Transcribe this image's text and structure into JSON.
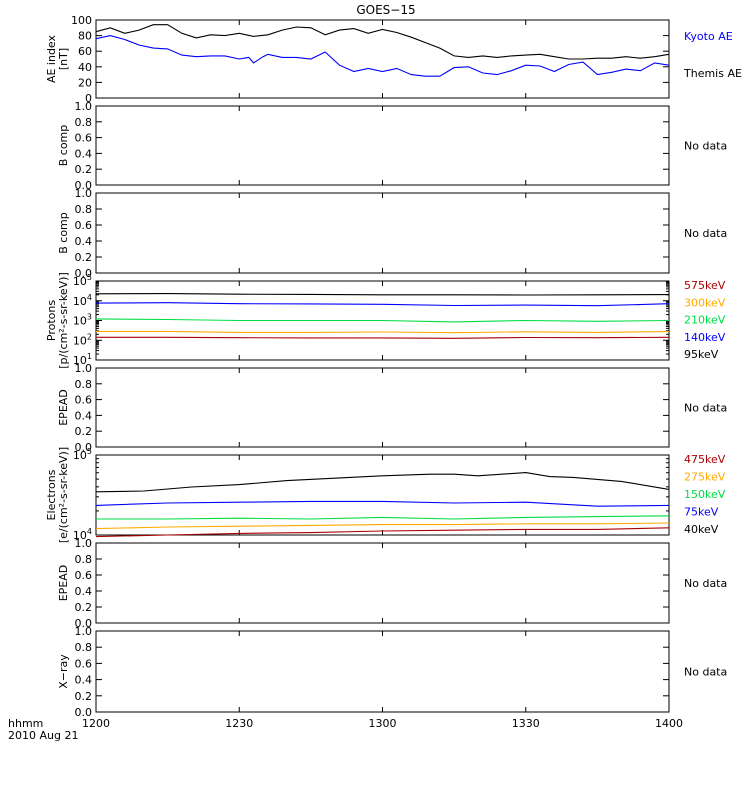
{
  "title": "GOES−15",
  "x_axis": {
    "label_line1": "hhmm",
    "label_line2": "2010 Aug 21",
    "range": [
      0,
      120
    ],
    "ticks": [
      {
        "value": 0,
        "label": "1200"
      },
      {
        "value": 30,
        "label": "1230"
      },
      {
        "value": 60,
        "label": "1300"
      },
      {
        "value": 90,
        "label": "1330"
      },
      {
        "value": 120,
        "label": "1400"
      }
    ]
  },
  "colors": {
    "black": "#000000",
    "blue": "#0000ff",
    "green": "#00dd44",
    "orange": "#ffaa00",
    "darkred": "#aa0000"
  },
  "chart_data": [
    {
      "id": "ae",
      "type": "line",
      "ylabel": [
        "AE index",
        "[nT]"
      ],
      "ylim": [
        0,
        100
      ],
      "scale": "linear",
      "yticks": [
        0,
        20,
        40,
        60,
        80,
        100
      ],
      "legend": [
        {
          "text": "Kyoto AE",
          "color": "#0000ff"
        },
        {
          "text": "Themis AE",
          "color": "#000000"
        }
      ],
      "series": [
        {
          "name": "Themis AE",
          "color": "#000000",
          "x": [
            0,
            3,
            6,
            9,
            12,
            15,
            18,
            21,
            24,
            27,
            30,
            33,
            36,
            39,
            42,
            45,
            48,
            51,
            54,
            57,
            60,
            63,
            66,
            69,
            72,
            75,
            78,
            81,
            84,
            87,
            90,
            93,
            96,
            99,
            102,
            105,
            108,
            111,
            114,
            117,
            120
          ],
          "y": [
            85,
            90,
            83,
            87,
            94,
            94,
            83,
            77,
            81,
            80,
            83,
            79,
            81,
            87,
            91,
            90,
            81,
            87,
            89,
            83,
            88,
            84,
            78,
            71,
            64,
            54,
            52,
            54,
            52,
            54,
            55,
            56,
            53,
            50,
            50,
            51,
            51,
            53,
            51,
            53,
            56
          ]
        },
        {
          "name": "Kyoto AE",
          "color": "#0000ff",
          "x": [
            0,
            3,
            6,
            9,
            12,
            15,
            18,
            21,
            24,
            27,
            30,
            32,
            33,
            35,
            36,
            39,
            42,
            45,
            48,
            51,
            54,
            57,
            60,
            63,
            66,
            69,
            72,
            75,
            78,
            81,
            84,
            87,
            90,
            93,
            96,
            99,
            102,
            105,
            108,
            111,
            114,
            117,
            120
          ],
          "y": [
            76,
            80,
            75,
            68,
            64,
            63,
            55,
            53,
            54,
            54,
            50,
            52,
            45,
            53,
            56,
            52,
            52,
            50,
            59,
            42,
            34,
            38,
            34,
            38,
            30,
            28,
            28,
            39,
            40,
            32,
            30,
            35,
            42,
            41,
            34,
            43,
            46,
            30,
            33,
            37,
            35,
            45,
            42
          ]
        }
      ]
    },
    {
      "id": "bcomp1",
      "type": "line",
      "ylabel": [
        "B comp"
      ],
      "ylim": [
        0,
        1
      ],
      "scale": "linear",
      "yticks": [
        0,
        0.2,
        0.4,
        0.6,
        0.8,
        1.0
      ],
      "legend": [
        {
          "text": "No data",
          "color": "#000000"
        }
      ],
      "series": []
    },
    {
      "id": "bcomp2",
      "type": "line",
      "ylabel": [
        "B comp"
      ],
      "ylim": [
        0,
        1
      ],
      "scale": "linear",
      "yticks": [
        0,
        0.2,
        0.4,
        0.6,
        0.8,
        1.0
      ],
      "legend": [
        {
          "text": "No data",
          "color": "#000000"
        }
      ],
      "series": []
    },
    {
      "id": "protons",
      "type": "line",
      "ylabel": [
        "Protons",
        "[p/(cm²-s-sr-keV)]"
      ],
      "ylim": [
        1,
        5
      ],
      "scale": "log10",
      "yticks": [
        1,
        2,
        3,
        4,
        5
      ],
      "legend": [
        {
          "text": "575keV",
          "color": "#aa0000"
        },
        {
          "text": "300keV",
          "color": "#ffaa00"
        },
        {
          "text": "210keV",
          "color": "#00dd44"
        },
        {
          "text": "140keV",
          "color": "#0000ff"
        },
        {
          "text": "95keV",
          "color": "#000000"
        }
      ],
      "series": [
        {
          "name": "95keV",
          "color": "#000000",
          "x": [
            0,
            15,
            30,
            45,
            60,
            75,
            90,
            105,
            120
          ],
          "y": [
            4.35,
            4.36,
            4.33,
            4.32,
            4.3,
            4.3,
            4.29,
            4.3,
            4.31
          ]
        },
        {
          "name": "140keV",
          "color": "#0000ff",
          "x": [
            0,
            15,
            30,
            45,
            60,
            75,
            90,
            105,
            120
          ],
          "y": [
            3.88,
            3.9,
            3.85,
            3.84,
            3.82,
            3.76,
            3.78,
            3.75,
            3.85
          ]
        },
        {
          "name": "210keV",
          "color": "#00dd44",
          "x": [
            0,
            15,
            30,
            45,
            60,
            75,
            90,
            105,
            120
          ],
          "y": [
            3.08,
            3.05,
            3.0,
            3.0,
            3.0,
            2.93,
            3.0,
            2.96,
            3.0
          ]
        },
        {
          "name": "300keV",
          "color": "#ffaa00",
          "x": [
            0,
            15,
            30,
            45,
            60,
            75,
            90,
            105,
            120
          ],
          "y": [
            2.45,
            2.45,
            2.4,
            2.4,
            2.42,
            2.38,
            2.43,
            2.4,
            2.44
          ]
        },
        {
          "name": "575keV",
          "color": "#aa0000",
          "x": [
            0,
            15,
            30,
            45,
            60,
            75,
            90,
            105,
            120
          ],
          "y": [
            2.15,
            2.15,
            2.13,
            2.12,
            2.12,
            2.1,
            2.14,
            2.13,
            2.15
          ]
        }
      ]
    },
    {
      "id": "epead1",
      "type": "line",
      "ylabel": [
        "EPEAD"
      ],
      "ylim": [
        0,
        1
      ],
      "scale": "linear",
      "yticks": [
        0,
        0.2,
        0.4,
        0.6,
        0.8,
        1.0
      ],
      "legend": [
        {
          "text": "No data",
          "color": "#000000"
        }
      ],
      "series": []
    },
    {
      "id": "electrons",
      "type": "line",
      "ylabel": [
        "Electrons",
        "[e/(cm²-s-sr-keV)]"
      ],
      "ylim": [
        4,
        5
      ],
      "scale": "log10",
      "yticks": [
        4,
        5
      ],
      "legend": [
        {
          "text": "475keV",
          "color": "#aa0000"
        },
        {
          "text": "275keV",
          "color": "#ffaa00"
        },
        {
          "text": "150keV",
          "color": "#00dd44"
        },
        {
          "text": "75keV",
          "color": "#0000ff"
        },
        {
          "text": "40keV",
          "color": "#000000"
        }
      ],
      "series": [
        {
          "name": "40keV",
          "color": "#000000",
          "x": [
            0,
            10,
            20,
            30,
            40,
            50,
            60,
            70,
            75,
            80,
            90,
            95,
            100,
            110,
            120
          ],
          "y": [
            4.54,
            4.55,
            4.6,
            4.63,
            4.68,
            4.71,
            4.74,
            4.76,
            4.76,
            4.74,
            4.78,
            4.73,
            4.72,
            4.67,
            4.57
          ]
        },
        {
          "name": "75keV",
          "color": "#0000ff",
          "x": [
            0,
            15,
            30,
            45,
            60,
            75,
            90,
            105,
            120
          ],
          "y": [
            4.37,
            4.4,
            4.41,
            4.42,
            4.42,
            4.4,
            4.41,
            4.36,
            4.37
          ]
        },
        {
          "name": "150keV",
          "color": "#00dd44",
          "x": [
            0,
            15,
            30,
            45,
            60,
            75,
            90,
            105,
            120
          ],
          "y": [
            4.2,
            4.2,
            4.21,
            4.2,
            4.22,
            4.2,
            4.22,
            4.23,
            4.24
          ]
        },
        {
          "name": "275keV",
          "color": "#ffaa00",
          "x": [
            0,
            15,
            30,
            45,
            60,
            75,
            90,
            105,
            120
          ],
          "y": [
            4.08,
            4.1,
            4.11,
            4.12,
            4.13,
            4.13,
            4.14,
            4.14,
            4.15
          ]
        },
        {
          "name": "475keV",
          "color": "#aa0000",
          "x": [
            0,
            15,
            30,
            45,
            60,
            75,
            90,
            105,
            120
          ],
          "y": [
            3.98,
            4.0,
            4.02,
            4.03,
            4.05,
            4.06,
            4.07,
            4.07,
            4.09
          ]
        }
      ]
    },
    {
      "id": "epead2",
      "type": "line",
      "ylabel": [
        "EPEAD"
      ],
      "ylim": [
        0,
        1
      ],
      "scale": "linear",
      "yticks": [
        0,
        0.2,
        0.4,
        0.6,
        0.8,
        1.0
      ],
      "legend": [
        {
          "text": "No data",
          "color": "#000000"
        }
      ],
      "series": []
    },
    {
      "id": "xray",
      "type": "line",
      "ylabel": [
        "X−ray"
      ],
      "ylim": [
        0,
        1
      ],
      "scale": "linear",
      "yticks": [
        0,
        0.2,
        0.4,
        0.6,
        0.8,
        1.0
      ],
      "legend": [
        {
          "text": "No data",
          "color": "#000000"
        }
      ],
      "series": []
    }
  ]
}
